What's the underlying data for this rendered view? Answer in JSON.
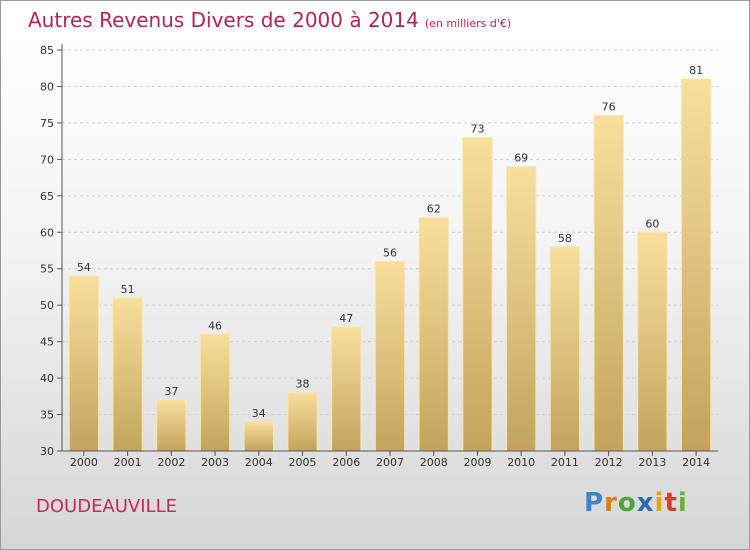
{
  "title": "Autres Revenus Divers de 2000 à 2014",
  "title_unit": "(en milliers d'€)",
  "city": "DOUDEAUVILLE",
  "logo": "Proxiti",
  "colors": {
    "title": "#b0265a",
    "bar_light": "#f7dc95",
    "bar_dark": "#c8a85f",
    "grid": "#cfcfcf"
  },
  "chart_data": {
    "type": "bar",
    "categories": [
      "2000",
      "2001",
      "2002",
      "2003",
      "2004",
      "2005",
      "2006",
      "2007",
      "2008",
      "2009",
      "2010",
      "2011",
      "2012",
      "2013",
      "2014"
    ],
    "values": [
      54,
      51,
      37,
      46,
      34,
      38,
      47,
      56,
      62,
      73,
      69,
      58,
      76,
      60,
      81
    ],
    "title": "Autres Revenus Divers de 2000 à 2014",
    "xlabel": "",
    "ylabel": "",
    "ylim": [
      30,
      85
    ],
    "yticks": [
      30,
      35,
      40,
      45,
      50,
      55,
      60,
      65,
      70,
      75,
      80,
      85
    ],
    "grid": true,
    "data_labels": true
  }
}
